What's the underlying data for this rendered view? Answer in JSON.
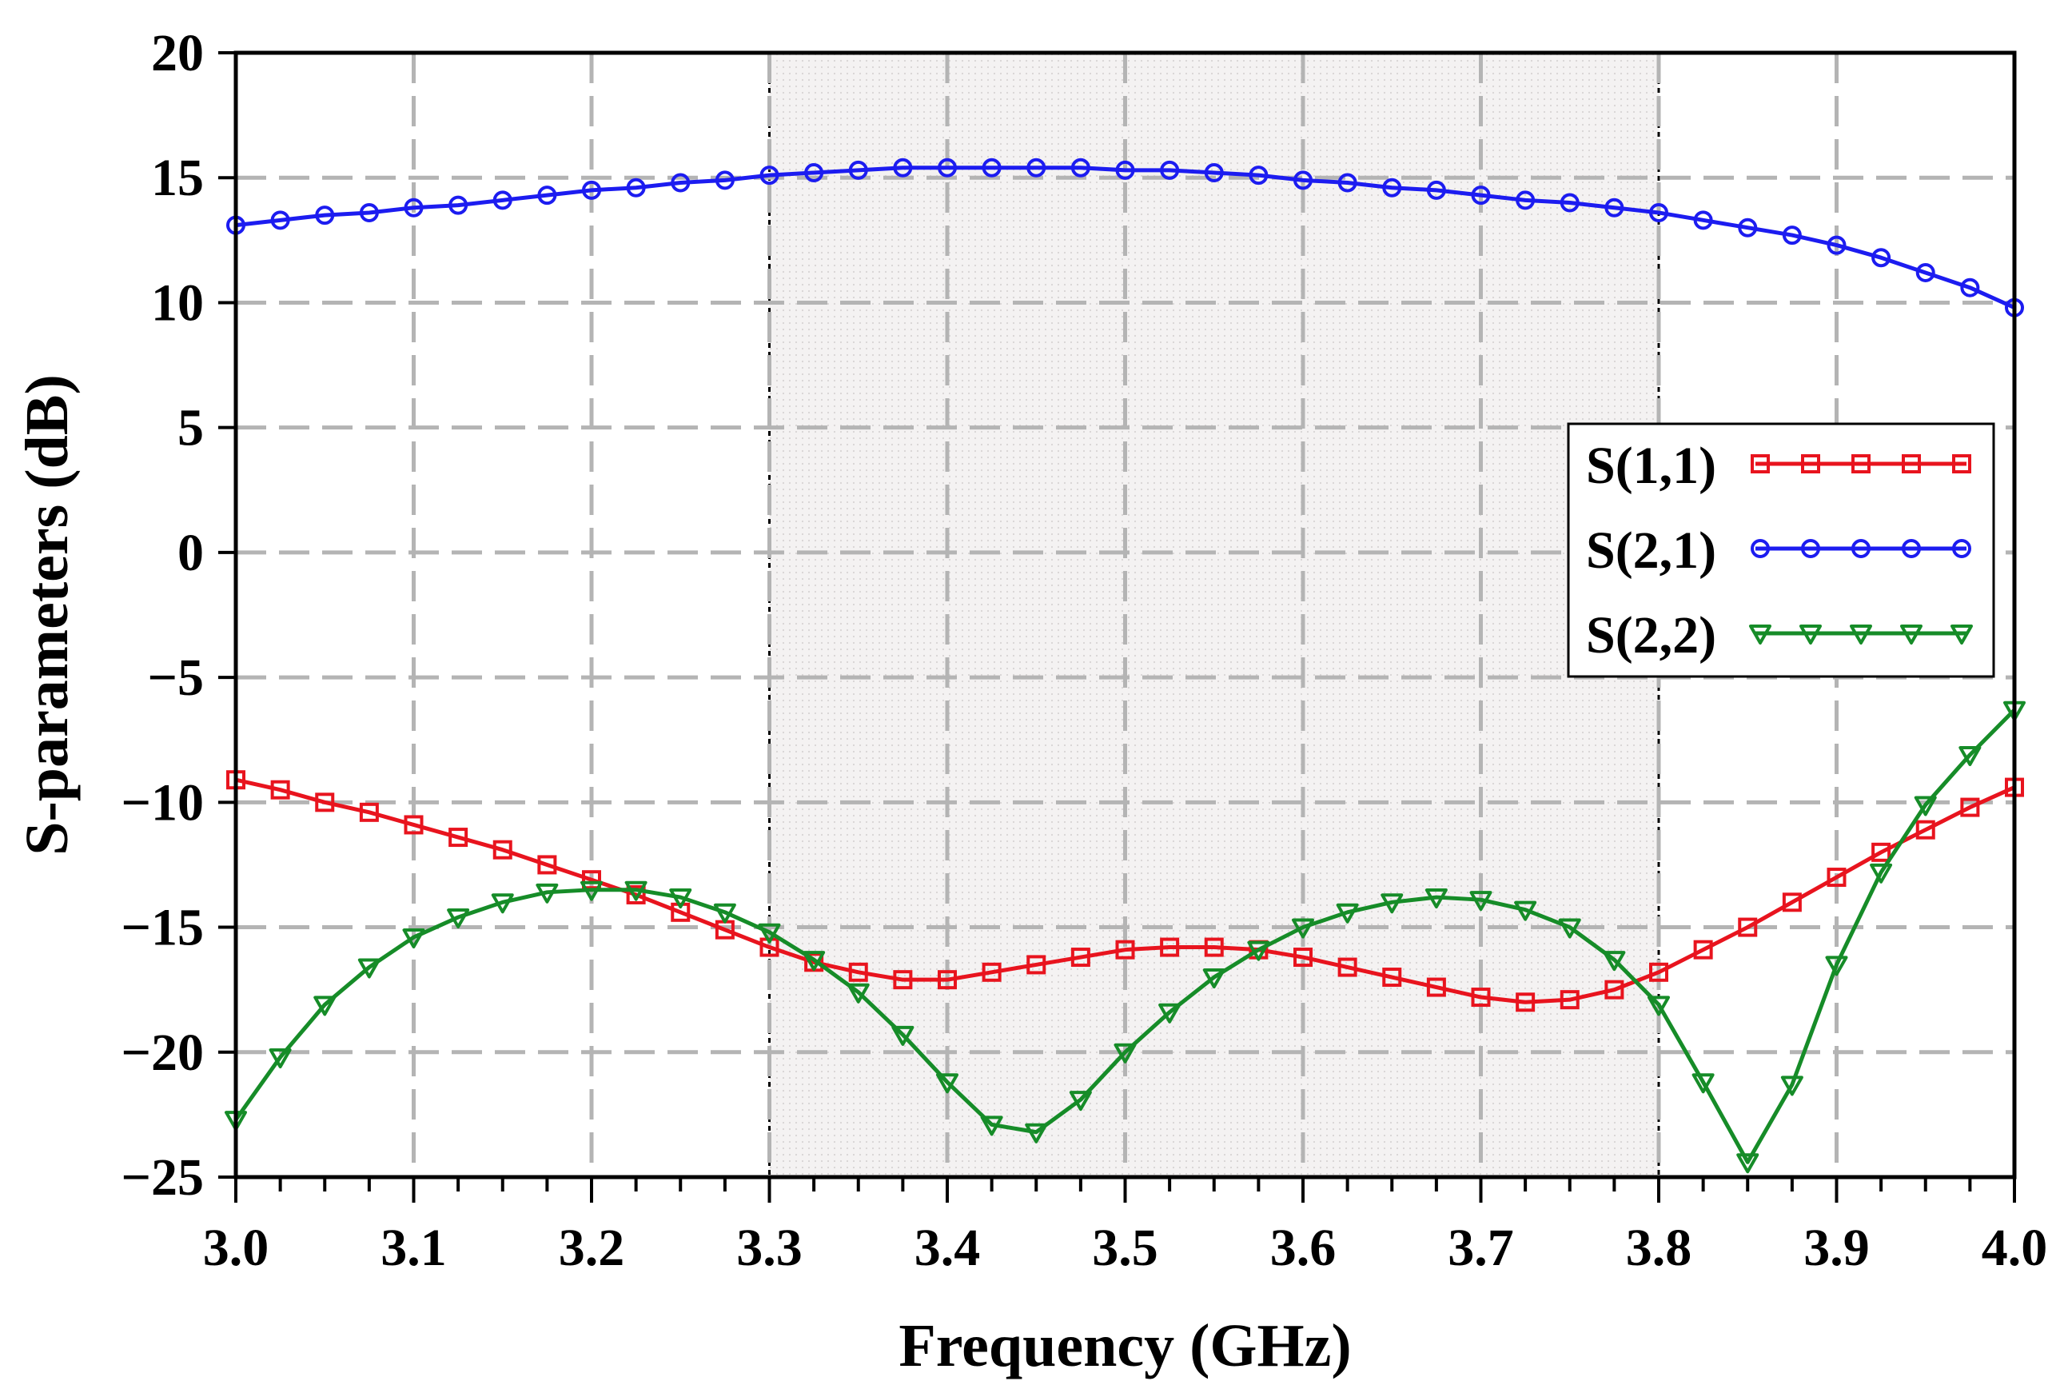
{
  "chart_data": {
    "type": "line",
    "title": "",
    "xlabel": "Frequency (GHz)",
    "ylabel": "S-parameters (dB)",
    "xlim": [
      3.0,
      4.0
    ],
    "ylim": [
      -25,
      20
    ],
    "x_ticks": [
      3.0,
      3.1,
      3.2,
      3.3,
      3.4,
      3.5,
      3.6,
      3.7,
      3.8,
      3.9,
      4.0
    ],
    "x_tick_labels": [
      "3.0",
      "3.1",
      "3.2",
      "3.3",
      "3.4",
      "3.5",
      "3.6",
      "3.7",
      "3.8",
      "3.9",
      "4.0"
    ],
    "y_ticks": [
      20,
      15,
      10,
      5,
      0,
      -5,
      -10,
      -15,
      -20,
      -25
    ],
    "y_tick_labels": [
      "20",
      "15",
      "10",
      "5",
      "0",
      "−5",
      "−10",
      "−15",
      "−20",
      "−25"
    ],
    "grid": true,
    "highlight_band": [
      3.3,
      3.8
    ],
    "legend_position": "right",
    "x": [
      3.0,
      3.025,
      3.05,
      3.075,
      3.1,
      3.125,
      3.15,
      3.175,
      3.2,
      3.225,
      3.25,
      3.275,
      3.3,
      3.325,
      3.35,
      3.375,
      3.4,
      3.425,
      3.45,
      3.475,
      3.5,
      3.525,
      3.55,
      3.575,
      3.6,
      3.625,
      3.65,
      3.675,
      3.7,
      3.725,
      3.75,
      3.775,
      3.8,
      3.825,
      3.85,
      3.875,
      3.9,
      3.925,
      3.95,
      3.975,
      4.0
    ],
    "series": [
      {
        "name": "S(1,1)",
        "color": "#e8141e",
        "marker": "square",
        "values": [
          -9.1,
          -9.5,
          -10.0,
          -10.4,
          -10.9,
          -11.4,
          -11.9,
          -12.5,
          -13.1,
          -13.7,
          -14.4,
          -15.1,
          -15.8,
          -16.4,
          -16.8,
          -17.1,
          -17.1,
          -16.8,
          -16.5,
          -16.2,
          -15.9,
          -15.8,
          -15.8,
          -15.9,
          -16.2,
          -16.6,
          -17.0,
          -17.4,
          -17.8,
          -18.0,
          -17.9,
          -17.5,
          -16.8,
          -15.9,
          -15.0,
          -14.0,
          -13.0,
          -12.0,
          -11.1,
          -10.2,
          -9.4
        ]
      },
      {
        "name": "S(2,1)",
        "color": "#1c1cf0",
        "marker": "circle",
        "values": [
          13.1,
          13.3,
          13.5,
          13.6,
          13.8,
          13.9,
          14.1,
          14.3,
          14.5,
          14.6,
          14.8,
          14.9,
          15.1,
          15.2,
          15.3,
          15.4,
          15.4,
          15.4,
          15.4,
          15.4,
          15.3,
          15.3,
          15.2,
          15.1,
          14.9,
          14.8,
          14.6,
          14.5,
          14.3,
          14.1,
          14.0,
          13.8,
          13.6,
          13.3,
          13.0,
          12.7,
          12.3,
          11.8,
          11.2,
          10.6,
          9.8
        ]
      },
      {
        "name": "S(2,2)",
        "color": "#168c28",
        "marker": "triangle-down",
        "values": [
          -22.7,
          -20.2,
          -18.1,
          -16.6,
          -15.4,
          -14.6,
          -14.0,
          -13.6,
          -13.5,
          -13.5,
          -13.8,
          -14.4,
          -15.2,
          -16.3,
          -17.6,
          -19.3,
          -21.2,
          -22.9,
          -23.2,
          -21.9,
          -20.0,
          -18.4,
          -17.0,
          -15.9,
          -15.0,
          -14.4,
          -14.0,
          -13.8,
          -13.9,
          -14.3,
          -15.0,
          -16.3,
          -18.1,
          -21.2,
          -24.4,
          -21.3,
          -16.5,
          -12.8,
          -10.1,
          -8.1,
          -6.3
        ]
      }
    ]
  }
}
